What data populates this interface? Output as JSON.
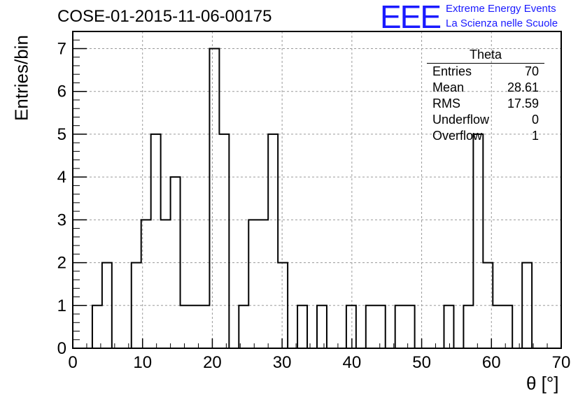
{
  "header": {
    "title": "COSE-01-2015-11-06-00175",
    "logo_text": "EEE",
    "logo_line1": "Extreme Energy Events",
    "logo_line2": "La Scienza nelle Scuole"
  },
  "stats_box": {
    "title": "Theta",
    "rows": [
      {
        "label": "Entries",
        "value": "70"
      },
      {
        "label": "Mean",
        "value": "28.61"
      },
      {
        "label": "RMS",
        "value": "17.59"
      },
      {
        "label": "Underflow",
        "value": "0"
      },
      {
        "label": "Overflow",
        "value": "1"
      }
    ]
  },
  "chart_data": {
    "type": "bar",
    "histogram": true,
    "xlabel": "θ [°]",
    "ylabel": "Entries/bin",
    "xlim": [
      0,
      70
    ],
    "ylim": [
      0,
      7.4
    ],
    "grid": true,
    "bin_width": 1.4,
    "x_ticks": [
      0,
      10,
      20,
      30,
      40,
      50,
      60,
      70
    ],
    "y_ticks": [
      0,
      1,
      2,
      3,
      4,
      5,
      6,
      7
    ],
    "bin_left_edges": [
      0,
      1.4,
      2.8,
      4.2,
      5.6,
      7.0,
      8.4,
      9.8,
      11.2,
      12.6,
      14.0,
      15.4,
      16.8,
      18.2,
      19.6,
      21.0,
      22.4,
      23.8,
      25.2,
      26.6,
      28.0,
      29.4,
      30.8,
      32.2,
      33.6,
      35.0,
      36.4,
      37.8,
      39.2,
      40.6,
      42.0,
      43.4,
      44.8,
      46.2,
      47.6,
      49.0,
      50.4,
      51.8,
      53.2,
      54.6,
      56.0,
      57.4,
      58.8,
      60.2,
      61.6,
      63.0,
      64.4,
      65.8,
      67.2,
      68.6
    ],
    "values": [
      0,
      0,
      1,
      2,
      0,
      0,
      2,
      3,
      5,
      3,
      4,
      1,
      1,
      1,
      7,
      5,
      0,
      1,
      3,
      3,
      5,
      2,
      0,
      1,
      0,
      1,
      0,
      0,
      1,
      0,
      1,
      1,
      0,
      1,
      1,
      0,
      0,
      0,
      1,
      0,
      1,
      5,
      2,
      1,
      1,
      0,
      2,
      0,
      0,
      0
    ]
  }
}
